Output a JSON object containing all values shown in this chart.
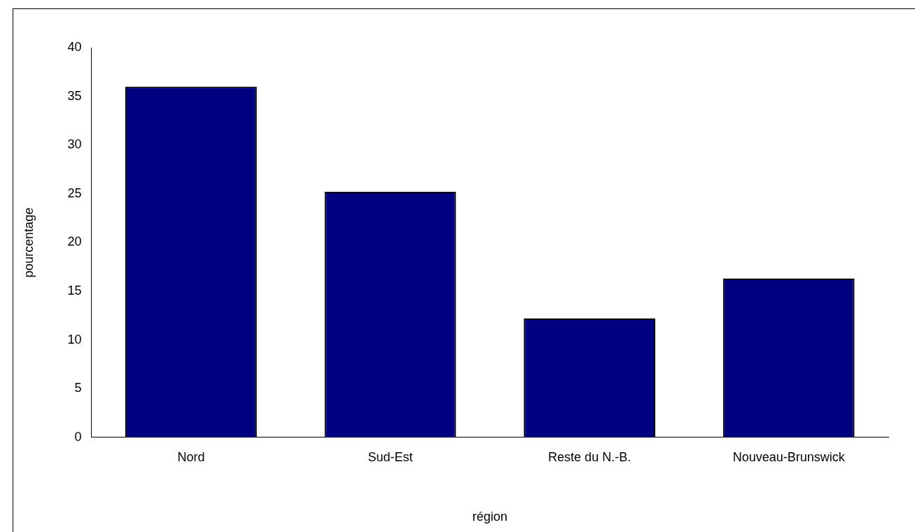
{
  "chart_data": {
    "type": "bar",
    "xlabel": "région",
    "ylabel": "pourcentage",
    "categories": [
      "Nord",
      "Sud-Est",
      "Reste du N.-B.",
      "Nouveau-Brunswick"
    ],
    "values": [
      36,
      25.2,
      12.2,
      16.3
    ],
    "color": "#000080",
    "ylim": [
      0,
      40
    ],
    "yticks": [
      0,
      5,
      10,
      15,
      20,
      25,
      30,
      35,
      40
    ],
    "grid": false,
    "legend": false
  }
}
